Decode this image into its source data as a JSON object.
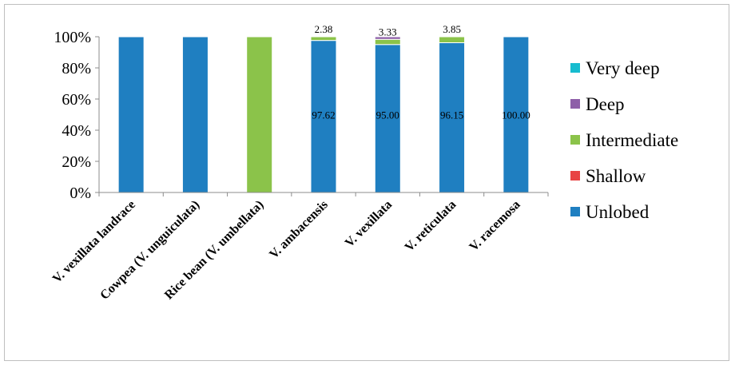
{
  "chart_data": {
    "type": "bar",
    "stacked": true,
    "percent": true,
    "title": "",
    "xlabel": "",
    "ylabel": "",
    "ylim": [
      0,
      100
    ],
    "yticks": [
      "0%",
      "20%",
      "40%",
      "60%",
      "80%",
      "100%"
    ],
    "grid": false,
    "legend_position": "right",
    "categories": [
      "V. vexillata landrace",
      "Cowpea (V. unguiculata)",
      "Rice bean (V. umbellata)",
      "V. ambacensis",
      "V. vexillata",
      "V. reticulata",
      "V. racemosa"
    ],
    "series": [
      {
        "name": "Unlobed",
        "color": "#1f7fc1",
        "values": [
          100,
          100,
          0,
          97.62,
          95.0,
          96.15,
          100.0
        ]
      },
      {
        "name": "Shallow",
        "color": "#e84444",
        "values": [
          0,
          0,
          0,
          0,
          0,
          0,
          0
        ]
      },
      {
        "name": "Intermediate",
        "color": "#8bc34a",
        "values": [
          0,
          0,
          100,
          2.38,
          3.33,
          3.85,
          0
        ]
      },
      {
        "name": "Deep",
        "color": "#8e5fa8",
        "values": [
          0,
          0,
          0,
          0,
          1.67,
          0,
          0
        ]
      },
      {
        "name": "Very deep",
        "color": "#17bccf",
        "values": [
          0,
          0,
          0,
          0,
          0,
          0,
          0
        ]
      }
    ],
    "data_labels": [
      {
        "category": 3,
        "series": "Unlobed",
        "text": "97.62"
      },
      {
        "category": 3,
        "series": "Intermediate",
        "text": "2.38"
      },
      {
        "category": 4,
        "series": "Unlobed",
        "text": "95.00"
      },
      {
        "category": 4,
        "series": "Intermediate",
        "text": "3.33"
      },
      {
        "category": 5,
        "series": "Unlobed",
        "text": "96.15"
      },
      {
        "category": 5,
        "series": "Intermediate",
        "text": "3.85"
      },
      {
        "category": 6,
        "series": "Unlobed",
        "text": "100.00"
      }
    ],
    "legend_order": [
      "Very deep",
      "Deep",
      "Intermediate",
      "Shallow",
      "Unlobed"
    ]
  }
}
